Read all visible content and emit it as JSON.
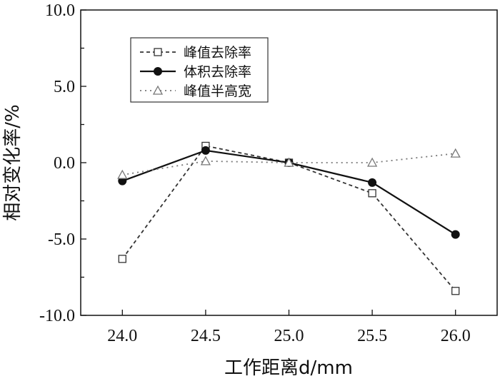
{
  "chart_data": {
    "type": "line",
    "xlabel": "工作距离d/mm",
    "ylabel": "相对变化率/%",
    "x": [
      24.0,
      24.5,
      25.0,
      25.5,
      26.0
    ],
    "x_tick_labels": [
      "24.0",
      "24.5",
      "25.0",
      "25.5",
      "26.0"
    ],
    "xlim": [
      23.75,
      26.25
    ],
    "y_tick_labels": [
      "10.0",
      "5.0",
      "0.0",
      "-5.0",
      "-10.0"
    ],
    "ylim": [
      -10.0,
      10.0
    ],
    "grid": false,
    "legend_position": "top-left",
    "series": [
      {
        "name": "峰值去除率",
        "values": [
          -6.3,
          1.1,
          0.0,
          -2.0,
          -8.4
        ],
        "line": "dashed",
        "marker": "open-square",
        "color": "#333333"
      },
      {
        "name": "体积去除率",
        "values": [
          -1.2,
          0.8,
          0.0,
          -1.3,
          -4.7
        ],
        "line": "solid",
        "marker": "filled-circle",
        "color": "#111111"
      },
      {
        "name": "峰值半高宽",
        "values": [
          -0.8,
          0.1,
          0.0,
          0.0,
          0.6
        ],
        "line": "dotted",
        "marker": "open-triangle",
        "color": "#777777"
      }
    ]
  }
}
